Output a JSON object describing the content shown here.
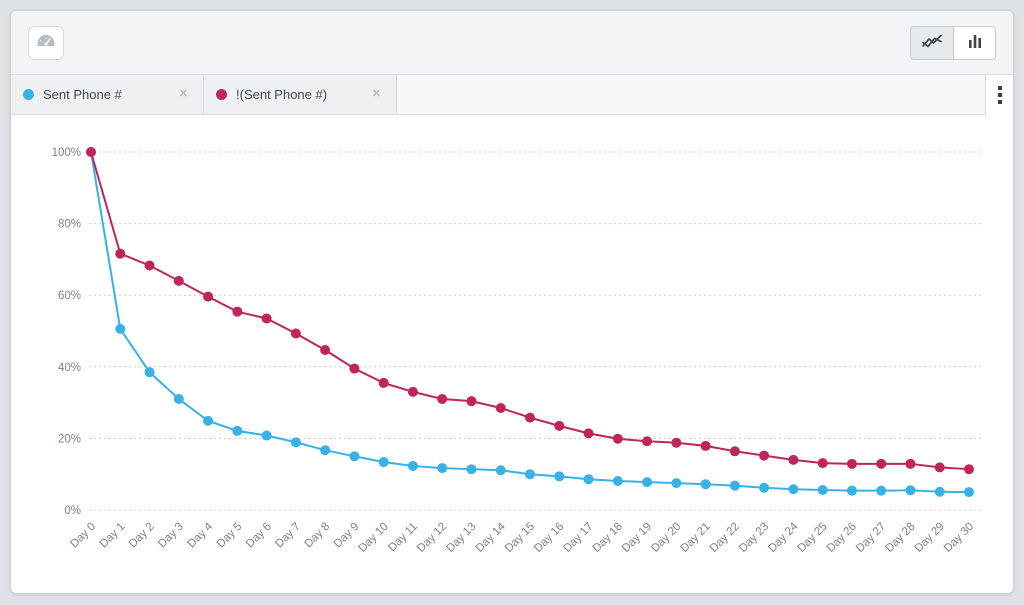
{
  "toolbar": {
    "dashboard_button": {
      "icon": "gauge-icon"
    },
    "chart_type_toggle": {
      "line_option": {
        "icon": "line-chart-icon",
        "selected": true
      },
      "bar_option": {
        "icon": "bar-chart-icon",
        "selected": false
      }
    }
  },
  "tabs": [
    {
      "label": "Sent Phone #",
      "dot_color": "#38b1e6"
    },
    {
      "label": "!(Sent Phone #)",
      "dot_color": "#c0245c"
    }
  ],
  "icons": {
    "close": "✕",
    "kebab": "kebab-menu-icon"
  },
  "chart_data": {
    "type": "line",
    "title": "",
    "xlabel": "",
    "ylabel": "",
    "ylim": [
      0,
      100
    ],
    "grid": "horizontal-dotted",
    "legend_position": "tabs-top",
    "categories": [
      "Day 0",
      "Day 1",
      "Day 2",
      "Day 3",
      "Day 4",
      "Day 5",
      "Day 6",
      "Day 7",
      "Day 8",
      "Day 9",
      "Day 10",
      "Day 11",
      "Day 12",
      "Day 13",
      "Day 14",
      "Day 15",
      "Day 16",
      "Day 17",
      "Day 18",
      "Day 19",
      "Day 20",
      "Day 21",
      "Day 22",
      "Day 23",
      "Day 24",
      "Day 25",
      "Day 26",
      "Day 27",
      "Day 28",
      "Day 29",
      "Day 30"
    ],
    "yticks": [
      {
        "value": 0,
        "label": "0%"
      },
      {
        "value": 20,
        "label": "20%"
      },
      {
        "value": 40,
        "label": "40%"
      },
      {
        "value": 60,
        "label": "60%"
      },
      {
        "value": 80,
        "label": "80%"
      },
      {
        "value": 100,
        "label": "100%"
      }
    ],
    "series": [
      {
        "name": "Sent Phone #",
        "color": "#38b1e6",
        "values": [
          100,
          50.6,
          38.5,
          31,
          24.9,
          22.1,
          20.8,
          18.9,
          16.7,
          15,
          13.4,
          12.3,
          11.7,
          11.4,
          11.1,
          10,
          9.4,
          8.6,
          8.1,
          7.8,
          7.5,
          7.2,
          6.8,
          6.2,
          5.8,
          5.6,
          5.4,
          5.4,
          5.5,
          5.1,
          5
        ]
      },
      {
        "name": "!(Sent Phone #)",
        "color": "#c0245c",
        "values": [
          100,
          71.6,
          68.3,
          64,
          59.6,
          55.4,
          53.5,
          49.3,
          44.7,
          39.5,
          35.5,
          33,
          31,
          30.4,
          28.5,
          25.8,
          23.5,
          21.4,
          19.9,
          19.2,
          18.8,
          17.9,
          16.4,
          15.2,
          14,
          13.1,
          12.9,
          12.9,
          12.9,
          11.9,
          11.4
        ]
      }
    ]
  }
}
